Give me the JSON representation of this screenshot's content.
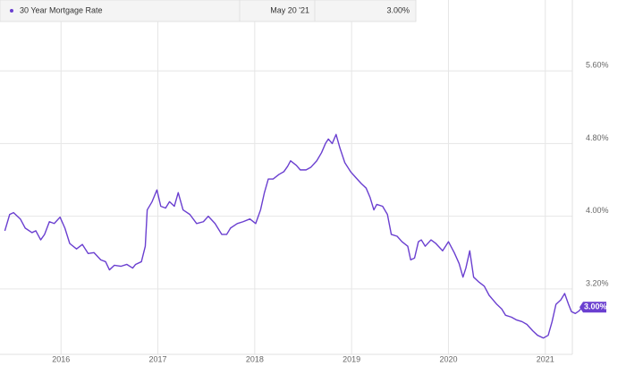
{
  "chart_data": {
    "type": "line",
    "x": [
      2015.42,
      2015.47,
      2015.51,
      2015.58,
      2015.63,
      2015.7,
      2015.74,
      2015.79,
      2015.83,
      2015.88,
      2015.93,
      2015.99,
      2016.04,
      2016.09,
      2016.16,
      2016.22,
      2016.28,
      2016.34,
      2016.41,
      2016.46,
      2016.5,
      2016.55,
      2016.62,
      2016.68,
      2016.74,
      2016.77,
      2016.83,
      2016.87,
      2016.89,
      2016.94,
      2016.99,
      2017.03,
      2017.08,
      2017.12,
      2017.17,
      2017.21,
      2017.26,
      2017.33,
      2017.4,
      2017.47,
      2017.52,
      2017.59,
      2017.66,
      2017.71,
      2017.75,
      2017.82,
      2017.88,
      2017.95,
      2018.01,
      2018.06,
      2018.1,
      2018.14,
      2018.19,
      2018.25,
      2018.3,
      2018.34,
      2018.37,
      2018.43,
      2018.47,
      2018.53,
      2018.58,
      2018.64,
      2018.69,
      2018.73,
      2018.76,
      2018.8,
      2018.84,
      2018.88,
      2018.93,
      2018.99,
      2019.04,
      2019.1,
      2019.15,
      2019.19,
      2019.23,
      2019.26,
      2019.32,
      2019.37,
      2019.41,
      2019.47,
      2019.52,
      2019.58,
      2019.61,
      2019.65,
      2019.69,
      2019.72,
      2019.76,
      2019.82,
      2019.87,
      2019.94,
      2020.0,
      2020.06,
      2020.11,
      2020.15,
      2020.18,
      2020.22,
      2020.26,
      2020.31,
      2020.37,
      2020.42,
      2020.46,
      2020.5,
      2020.55,
      2020.59,
      2020.65,
      2020.7,
      2020.76,
      2020.81,
      2020.87,
      2020.92,
      2020.98,
      2021.03,
      2021.07,
      2021.11,
      2021.16,
      2021.2,
      2021.24,
      2021.27,
      2021.31,
      2021.35,
      2021.38
    ],
    "series": [
      {
        "name": "30 Year Mortgage Rate",
        "color": "#6a3fd0",
        "values": [
          3.84,
          4.02,
          4.04,
          3.97,
          3.87,
          3.82,
          3.84,
          3.74,
          3.8,
          3.94,
          3.92,
          3.99,
          3.87,
          3.7,
          3.64,
          3.69,
          3.59,
          3.6,
          3.52,
          3.5,
          3.41,
          3.46,
          3.45,
          3.47,
          3.43,
          3.47,
          3.5,
          3.67,
          4.07,
          4.16,
          4.29,
          4.11,
          4.09,
          4.16,
          4.11,
          4.26,
          4.07,
          4.02,
          3.92,
          3.94,
          4.0,
          3.92,
          3.8,
          3.8,
          3.87,
          3.92,
          3.94,
          3.97,
          3.92,
          4.07,
          4.26,
          4.41,
          4.41,
          4.46,
          4.49,
          4.55,
          4.61,
          4.56,
          4.51,
          4.51,
          4.54,
          4.61,
          4.7,
          4.8,
          4.85,
          4.8,
          4.9,
          4.75,
          4.59,
          4.49,
          4.43,
          4.36,
          4.31,
          4.21,
          4.07,
          4.13,
          4.11,
          4.02,
          3.8,
          3.78,
          3.72,
          3.67,
          3.52,
          3.54,
          3.72,
          3.74,
          3.67,
          3.74,
          3.7,
          3.62,
          3.72,
          3.6,
          3.48,
          3.33,
          3.43,
          3.62,
          3.33,
          3.28,
          3.23,
          3.13,
          3.08,
          3.03,
          2.98,
          2.91,
          2.89,
          2.86,
          2.84,
          2.81,
          2.74,
          2.69,
          2.66,
          2.69,
          2.84,
          3.03,
          3.08,
          3.15,
          3.03,
          2.95,
          2.93,
          2.96,
          3.0
        ],
        "last_value_label": "3.00%",
        "last_date_label": "May 20 '21"
      }
    ],
    "xlim": [
      2015.37,
      2021.39
    ],
    "xticks": [
      2016,
      2017,
      2018,
      2019,
      2020,
      2021
    ],
    "ylim": [
      2.48,
      6.38
    ],
    "yticks": [
      {
        "value": 3.2,
        "label": "3.20%"
      },
      {
        "value": 4.0,
        "label": "4.00%"
      },
      {
        "value": 4.8,
        "label": "4.80%"
      },
      {
        "value": 5.6,
        "label": "5.60%"
      }
    ],
    "grid": true
  }
}
